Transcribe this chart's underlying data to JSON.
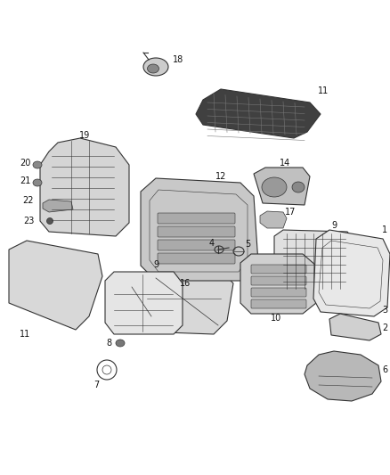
{
  "bg_color": "#ffffff",
  "line_color": "#333333",
  "label_color": "#111111",
  "fig_width": 4.38,
  "fig_height": 5.33,
  "dpi": 100
}
